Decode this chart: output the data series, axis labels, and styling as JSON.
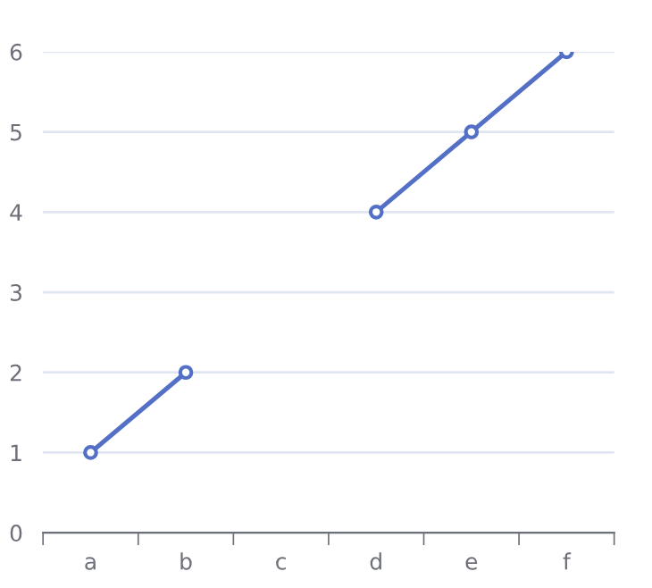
{
  "chart_data": {
    "type": "line",
    "categories": [
      "a",
      "b",
      "c",
      "d",
      "e",
      "f"
    ],
    "series": [
      {
        "color": "#5470c6",
        "values": [
          1,
          2,
          null,
          4,
          5,
          6
        ]
      }
    ],
    "ylim": [
      0,
      6
    ],
    "yticks": [
      0,
      1,
      2,
      3,
      4,
      5,
      6
    ],
    "grid": "y",
    "marker": "circle",
    "line_style": "solid"
  }
}
